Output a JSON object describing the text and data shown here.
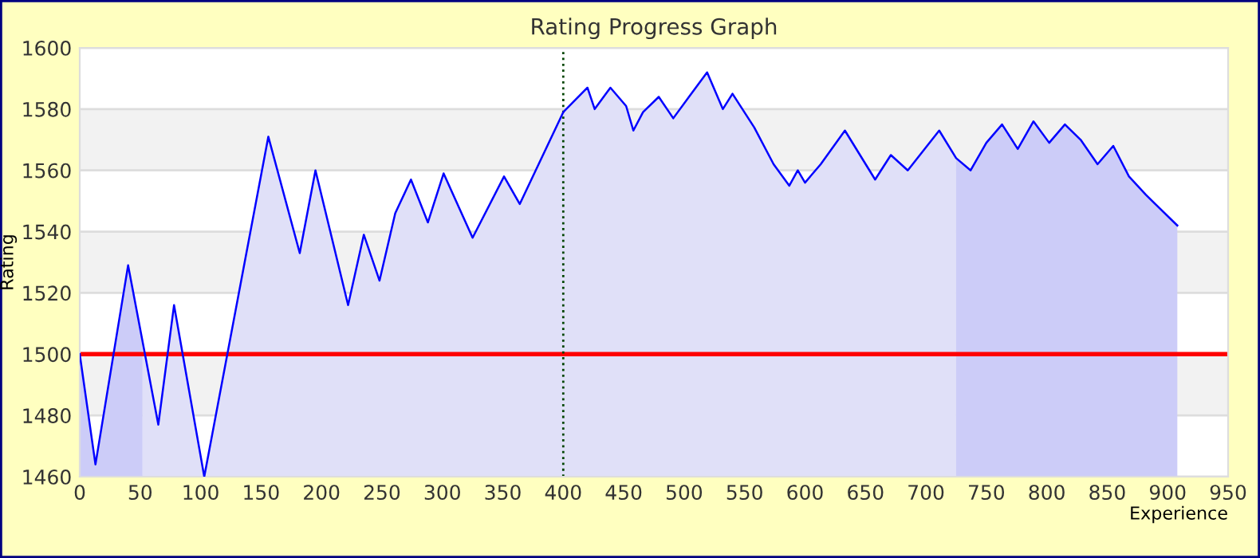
{
  "chart_data": {
    "type": "line",
    "title": "Rating Progress Graph",
    "xlabel": "Experience",
    "ylabel": "Rating",
    "series": [
      {
        "type": "area",
        "color": "#ccccf8",
        "x": [
          0,
          13,
          40,
          52
        ],
        "values": [
          1500,
          1464,
          1529,
          1503
        ]
      },
      {
        "type": "area",
        "color": "#e0e0f8",
        "x": [
          52,
          65,
          78,
          103,
          156,
          182,
          195,
          222,
          235,
          248,
          261,
          274,
          288,
          301,
          325,
          351,
          364,
          400,
          420,
          426,
          439,
          452,
          458,
          466,
          479,
          491,
          504,
          519,
          532,
          540,
          558,
          574,
          587,
          594,
          600,
          613,
          633,
          658,
          671,
          685,
          711,
          725
        ],
        "values": [
          1503,
          1477,
          1516,
          1460,
          1571,
          1533,
          1560,
          1516,
          1539,
          1524,
          1546,
          1557,
          1543,
          1559,
          1538,
          1558,
          1549,
          1579,
          1587,
          1580,
          1587,
          1581,
          1573,
          1579,
          1584,
          1577,
          1584,
          1592,
          1580,
          1585,
          1574,
          1562,
          1555,
          1560,
          1556,
          1562,
          1573,
          1557,
          1565,
          1560,
          1573,
          1564
        ]
      },
      {
        "type": "area",
        "color": "#ccccf8",
        "x": [
          725,
          737,
          750,
          763,
          776,
          789,
          802,
          815,
          828,
          842,
          855,
          868,
          882,
          908
        ],
        "values": [
          1564,
          1560,
          1569,
          1575,
          1567,
          1576,
          1569,
          1575,
          1570,
          1562,
          1568,
          1558,
          1552,
          1542
        ]
      },
      {
        "color": "#0000ff",
        "x": [
          0,
          13,
          40,
          65,
          78,
          103,
          156,
          182,
          195,
          222,
          235,
          248,
          261,
          274,
          288,
          301,
          325,
          351,
          364,
          400,
          420,
          426,
          439,
          452,
          458,
          466,
          479,
          491,
          504,
          519,
          532,
          540,
          558,
          574,
          587,
          594,
          600,
          613,
          633,
          658,
          671,
          685,
          711,
          725,
          737,
          750,
          763,
          776,
          789,
          802,
          815,
          828,
          842,
          855,
          868,
          882,
          908
        ],
        "values": [
          1500,
          1464,
          1529,
          1477,
          1516,
          1460,
          1571,
          1533,
          1560,
          1516,
          1539,
          1524,
          1546,
          1557,
          1543,
          1559,
          1538,
          1558,
          1549,
          1579,
          1587,
          1580,
          1587,
          1581,
          1573,
          1579,
          1584,
          1577,
          1584,
          1592,
          1580,
          1585,
          1574,
          1562,
          1555,
          1560,
          1556,
          1562,
          1573,
          1557,
          1565,
          1560,
          1573,
          1564,
          1560,
          1569,
          1575,
          1567,
          1576,
          1569,
          1575,
          1570,
          1562,
          1568,
          1558,
          1552,
          1542
        ]
      }
    ],
    "xlim": [
      0,
      950
    ],
    "xticks": [
      0,
      50,
      100,
      150,
      200,
      250,
      300,
      350,
      400,
      450,
      500,
      550,
      600,
      650,
      700,
      750,
      800,
      850,
      900,
      950
    ],
    "ylim": [
      1460,
      1600
    ],
    "yticks": [
      1460,
      1480,
      1500,
      1520,
      1540,
      1560,
      1580,
      1600
    ],
    "grid": "y",
    "marker": "none",
    "line_style": "solid",
    "bands": [
      {
        "axis": "y",
        "from": 1480,
        "to": 1500,
        "color": "#f2f2f2"
      },
      {
        "axis": "y",
        "from": 1520,
        "to": 1540,
        "color": "#f2f2f2"
      },
      {
        "axis": "y",
        "from": 1560,
        "to": 1580,
        "color": "#f2f2f2"
      }
    ],
    "ref_lines": [
      {
        "axis": "y",
        "value": 1500,
        "color": "#ff0000",
        "line_style": "solid"
      },
      {
        "axis": "x",
        "value": 400,
        "color": "#004400",
        "line_style": "dotted"
      }
    ]
  }
}
